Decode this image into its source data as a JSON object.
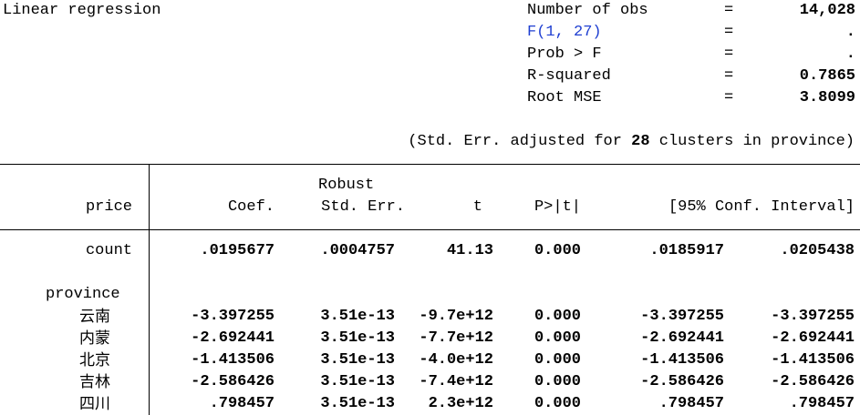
{
  "header": {
    "title": "Linear regression",
    "stats": [
      {
        "label": "Number of obs",
        "eq": "=",
        "value": "14,028",
        "link": false
      },
      {
        "label": "F(1, 27)",
        "eq": "=",
        "value": ".",
        "link": true
      },
      {
        "label": "Prob > F",
        "eq": "=",
        "value": ".",
        "link": false
      },
      {
        "label": "R-squared",
        "eq": "=",
        "value": "0.7865",
        "link": false
      },
      {
        "label": "Root MSE",
        "eq": "=",
        "value": "3.8099",
        "link": false
      }
    ],
    "cluster_note": {
      "prefix": "(Std. Err. adjusted for",
      "n": "28",
      "suffix": "clusters in province)"
    }
  },
  "table": {
    "dep_var": "price",
    "columns": {
      "coef": "Coef.",
      "robust": "Robust",
      "se": "Std. Err.",
      "t": "t",
      "p": "P>|t|",
      "ci": "[95% Conf. Interval]"
    },
    "count_row": {
      "name": "count",
      "coef": ".0195677",
      "se": ".0004757",
      "t": "41.13",
      "p": "0.000",
      "ci_low": ".0185917",
      "ci_high": ".0205438"
    },
    "group_label": "province",
    "province_rows": [
      {
        "name": "云南",
        "coef": "-3.397255",
        "se": "3.51e-13",
        "t": "-9.7e+12",
        "p": "0.000",
        "ci_low": "-3.397255",
        "ci_high": "-3.397255"
      },
      {
        "name": "内蒙",
        "coef": "-2.692441",
        "se": "3.51e-13",
        "t": "-7.7e+12",
        "p": "0.000",
        "ci_low": "-2.692441",
        "ci_high": "-2.692441"
      },
      {
        "name": "北京",
        "coef": "-1.413506",
        "se": "3.51e-13",
        "t": "-4.0e+12",
        "p": "0.000",
        "ci_low": "-1.413506",
        "ci_high": "-1.413506"
      },
      {
        "name": "吉林",
        "coef": "-2.586426",
        "se": "3.51e-13",
        "t": "-7.4e+12",
        "p": "0.000",
        "ci_low": "-2.586426",
        "ci_high": "-2.586426"
      },
      {
        "name": "四川",
        "coef": ".798457",
        "se": "3.51e-13",
        "t": "2.3e+12",
        "p": "0.000",
        "ci_low": ".798457",
        "ci_high": ".798457"
      }
    ]
  }
}
